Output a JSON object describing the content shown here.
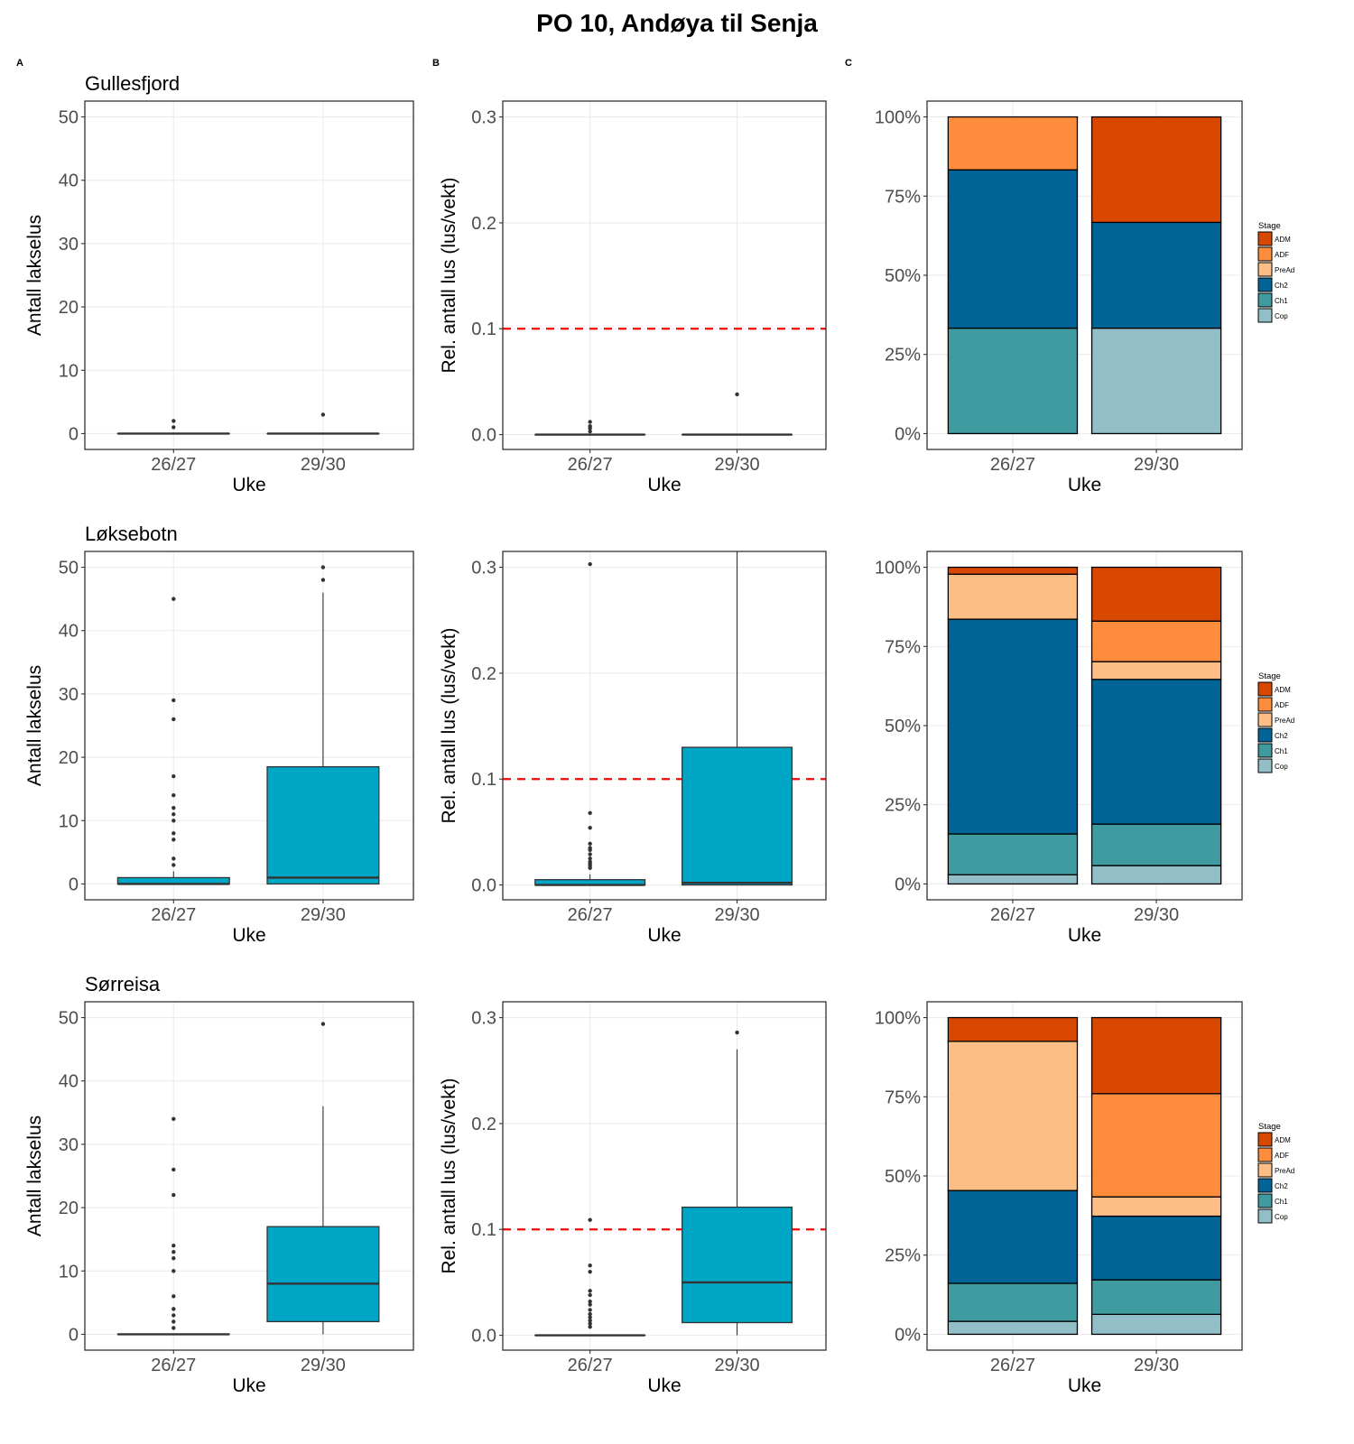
{
  "title": "PO 10, Andøya til Senja",
  "panel_tags": [
    "A",
    "B",
    "C"
  ],
  "colors": {
    "box_fill": "#00A6C5",
    "box_line": "#333333",
    "threshold_line": "#FF0000",
    "grid": "#EBEBEB",
    "stages": {
      "ADM": "#D94801",
      "ADF": "#FD8D3C",
      "PreAd": "#FDBE85",
      "Ch2": "#006596",
      "Ch1": "#3F9B9F",
      "Cop": "#92BEC7"
    }
  },
  "legend": {
    "title": "Stage",
    "items": [
      "ADM",
      "ADF",
      "PreAd",
      "Ch2",
      "Ch1",
      "Cop"
    ]
  },
  "chart_data": [
    {
      "type": "boxplot",
      "panel": "A",
      "title": "Gullesfjord",
      "xlabel": "Uke",
      "ylabel": "Antall lakselus",
      "categories": [
        "26/27",
        "29/30"
      ],
      "ylim": [
        -2.5,
        52.5
      ],
      "yticks": [
        0,
        10,
        20,
        30,
        40,
        50
      ],
      "boxes": [
        {
          "q1": 0,
          "median": 0,
          "q3": 0,
          "whisker_low": 0,
          "whisker_high": 0,
          "outliers": [
            1,
            2
          ]
        },
        {
          "q1": 0,
          "median": 0,
          "q3": 0,
          "whisker_low": 0,
          "whisker_high": 0,
          "outliers": [
            3
          ]
        }
      ]
    },
    {
      "type": "boxplot",
      "panel": "B",
      "title": "",
      "xlabel": "Uke",
      "ylabel": "Rel. antall lus (lus/vekt)",
      "categories": [
        "26/27",
        "29/30"
      ],
      "ylim": [
        -0.014,
        0.315
      ],
      "yticks": [
        0.0,
        0.1,
        0.2,
        0.3
      ],
      "threshold": 0.1,
      "boxes": [
        {
          "q1": 0,
          "median": 0,
          "q3": 0,
          "whisker_low": 0,
          "whisker_high": 0,
          "outliers": [
            0.003,
            0.006,
            0.008,
            0.012
          ]
        },
        {
          "q1": 0,
          "median": 0,
          "q3": 0,
          "whisker_low": 0,
          "whisker_high": 0,
          "outliers": [
            0.038
          ]
        }
      ]
    },
    {
      "type": "stacked_bar_percent",
      "panel": "C",
      "title": "",
      "xlabel": "Uke",
      "ylabel": "",
      "categories": [
        "26/27",
        "29/30"
      ],
      "ylim": [
        0,
        100
      ],
      "yticks": [
        "0%",
        "25%",
        "50%",
        "75%",
        "100%"
      ],
      "series": [
        {
          "name": "ADM",
          "values": [
            0,
            33.3
          ]
        },
        {
          "name": "ADF",
          "values": [
            16.7,
            0
          ]
        },
        {
          "name": "PreAd",
          "values": [
            0,
            0
          ]
        },
        {
          "name": "Ch2",
          "values": [
            50.0,
            33.4
          ]
        },
        {
          "name": "Ch1",
          "values": [
            33.3,
            0
          ]
        },
        {
          "name": "Cop",
          "values": [
            0,
            33.3
          ]
        }
      ]
    },
    {
      "type": "boxplot",
      "panel": "A",
      "title": "Løksebotn",
      "xlabel": "Uke",
      "ylabel": "Antall lakselus",
      "categories": [
        "26/27",
        "29/30"
      ],
      "ylim": [
        -2.5,
        52.5
      ],
      "yticks": [
        0,
        10,
        20,
        30,
        40,
        50
      ],
      "boxes": [
        {
          "q1": 0,
          "median": 0,
          "q3": 1,
          "whisker_low": 0,
          "whisker_high": 2,
          "outliers": [
            3,
            4,
            7,
            8,
            10,
            11,
            12,
            14,
            17,
            26,
            29,
            45
          ]
        },
        {
          "q1": 0,
          "median": 1,
          "q3": 18.5,
          "whisker_low": 0,
          "whisker_high": 46,
          "outliers": [
            48,
            50
          ]
        }
      ]
    },
    {
      "type": "boxplot",
      "panel": "B",
      "title": "",
      "xlabel": "Uke",
      "ylabel": "Rel. antall lus (lus/vekt)",
      "categories": [
        "26/27",
        "29/30"
      ],
      "ylim": [
        -0.014,
        0.315
      ],
      "yticks": [
        0.0,
        0.1,
        0.2,
        0.3
      ],
      "threshold": 0.1,
      "boxes": [
        {
          "q1": 0,
          "median": 0,
          "q3": 0.005,
          "whisker_low": 0,
          "whisker_high": 0.01,
          "outliers": [
            0.016,
            0.018,
            0.02,
            0.022,
            0.025,
            0.029,
            0.033,
            0.035,
            0.039,
            0.054,
            0.068,
            0.303
          ]
        },
        {
          "q1": 0,
          "median": 0.002,
          "q3": 0.13,
          "whisker_low": 0,
          "whisker_high": 0.315,
          "outliers": []
        }
      ]
    },
    {
      "type": "stacked_bar_percent",
      "panel": "C",
      "title": "",
      "xlabel": "Uke",
      "ylabel": "",
      "categories": [
        "26/27",
        "29/30"
      ],
      "ylim": [
        0,
        100
      ],
      "yticks": [
        "0%",
        "25%",
        "50%",
        "75%",
        "100%"
      ],
      "series": [
        {
          "name": "ADM",
          "values": [
            2.2,
            17.0
          ]
        },
        {
          "name": "ADF",
          "values": [
            0,
            12.8
          ]
        },
        {
          "name": "PreAd",
          "values": [
            14.2,
            5.6
          ]
        },
        {
          "name": "Ch2",
          "values": [
            67.8,
            45.7
          ]
        },
        {
          "name": "Ch1",
          "values": [
            12.9,
            13.1
          ]
        },
        {
          "name": "Cop",
          "values": [
            2.9,
            5.8
          ]
        }
      ]
    },
    {
      "type": "boxplot",
      "panel": "A",
      "title": "Sørreisa",
      "xlabel": "Uke",
      "ylabel": "Antall lakselus",
      "categories": [
        "26/27",
        "29/30"
      ],
      "ylim": [
        -2.5,
        52.5
      ],
      "yticks": [
        0,
        10,
        20,
        30,
        40,
        50
      ],
      "boxes": [
        {
          "q1": 0,
          "median": 0,
          "q3": 0,
          "whisker_low": 0,
          "whisker_high": 0,
          "outliers": [
            1,
            2,
            3,
            4,
            6,
            10,
            12,
            13,
            14,
            22,
            26,
            34
          ]
        },
        {
          "q1": 2,
          "median": 8,
          "q3": 17,
          "whisker_low": 0,
          "whisker_high": 36,
          "outliers": [
            49
          ]
        }
      ]
    },
    {
      "type": "boxplot",
      "panel": "B",
      "title": "",
      "xlabel": "Uke",
      "ylabel": "Rel. antall lus (lus/vekt)",
      "categories": [
        "26/27",
        "29/30"
      ],
      "ylim": [
        -0.014,
        0.315
      ],
      "yticks": [
        0.0,
        0.1,
        0.2,
        0.3
      ],
      "threshold": 0.1,
      "boxes": [
        {
          "q1": 0,
          "median": 0,
          "q3": 0,
          "whisker_low": 0,
          "whisker_high": 0,
          "outliers": [
            0.008,
            0.011,
            0.014,
            0.017,
            0.02,
            0.024,
            0.029,
            0.032,
            0.038,
            0.042,
            0.06,
            0.066,
            0.109
          ]
        },
        {
          "q1": 0.012,
          "median": 0.05,
          "q3": 0.121,
          "whisker_low": 0,
          "whisker_high": 0.27,
          "outliers": [
            0.286
          ]
        }
      ]
    },
    {
      "type": "stacked_bar_percent",
      "panel": "C",
      "title": "",
      "xlabel": "Uke",
      "ylabel": "",
      "categories": [
        "26/27",
        "29/30"
      ],
      "ylim": [
        0,
        100
      ],
      "yticks": [
        "0%",
        "25%",
        "50%",
        "75%",
        "100%"
      ],
      "series": [
        {
          "name": "ADM",
          "values": [
            7.5,
            24.0
          ]
        },
        {
          "name": "ADF",
          "values": [
            0,
            32.6
          ]
        },
        {
          "name": "PreAd",
          "values": [
            47.1,
            6.1
          ]
        },
        {
          "name": "Ch2",
          "values": [
            29.3,
            20.1
          ]
        },
        {
          "name": "Ch1",
          "values": [
            12.0,
            10.9
          ]
        },
        {
          "name": "Cop",
          "values": [
            4.1,
            6.3
          ]
        }
      ]
    }
  ]
}
